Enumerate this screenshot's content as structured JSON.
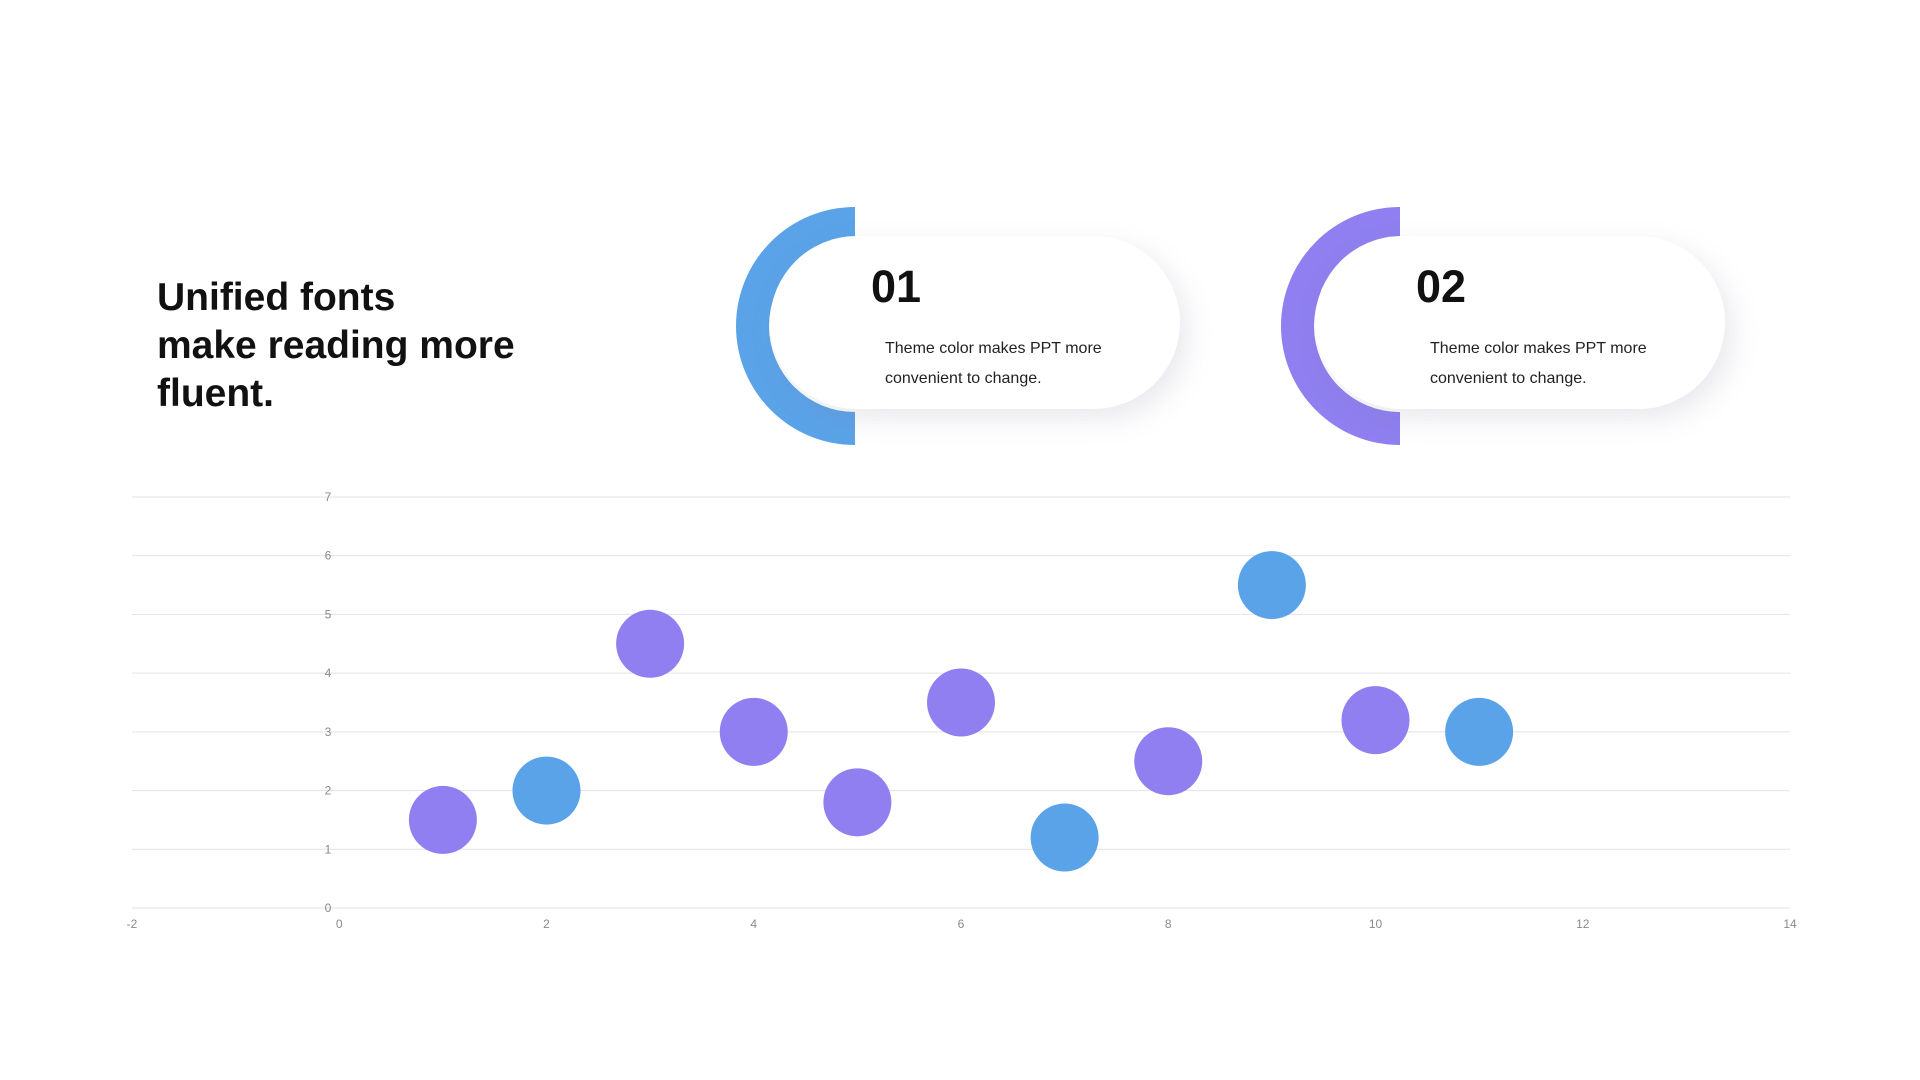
{
  "headline": {
    "line1": "Unified fonts",
    "line2": "make reading more",
    "line3": "fluent."
  },
  "cards": [
    {
      "number": "01",
      "line1": "Theme  color makes PPT more",
      "line2": "convenient to change.",
      "accent": "#5ba3e8"
    },
    {
      "number": "02",
      "line1": "Theme  color makes PPT more",
      "line2": "convenient to change.",
      "accent": "#8f7ff0"
    }
  ],
  "colors": {
    "blue": "#5ba3e8",
    "purple": "#8f7ff0",
    "grid": "#e2e2e2",
    "tick": "#8a8a8a"
  },
  "chart_data": {
    "type": "scatter",
    "title": "",
    "xlabel": "",
    "ylabel": "",
    "xlim": [
      -2,
      14
    ],
    "ylim": [
      0,
      7
    ],
    "x_ticks": [
      "-2",
      "0",
      "2",
      "4",
      "6",
      "8",
      "10",
      "12",
      "14"
    ],
    "y_ticks": [
      "0",
      "1",
      "2",
      "3",
      "4",
      "5",
      "6",
      "7"
    ],
    "grid": "horizontal",
    "legend": "none",
    "series": [
      {
        "color": "#8f7ff0",
        "points": [
          {
            "x": 1,
            "y": 1.5
          },
          {
            "x": 3,
            "y": 4.5
          },
          {
            "x": 4,
            "y": 3
          },
          {
            "x": 5,
            "y": 1.8
          },
          {
            "x": 6,
            "y": 3.5
          },
          {
            "x": 8,
            "y": 2.5
          },
          {
            "x": 10,
            "y": 3.2
          }
        ]
      },
      {
        "color": "#5ba3e8",
        "points": [
          {
            "x": 2,
            "y": 2
          },
          {
            "x": 7,
            "y": 1.2
          },
          {
            "x": 9,
            "y": 5.5
          },
          {
            "x": 11,
            "y": 3
          }
        ]
      }
    ]
  }
}
